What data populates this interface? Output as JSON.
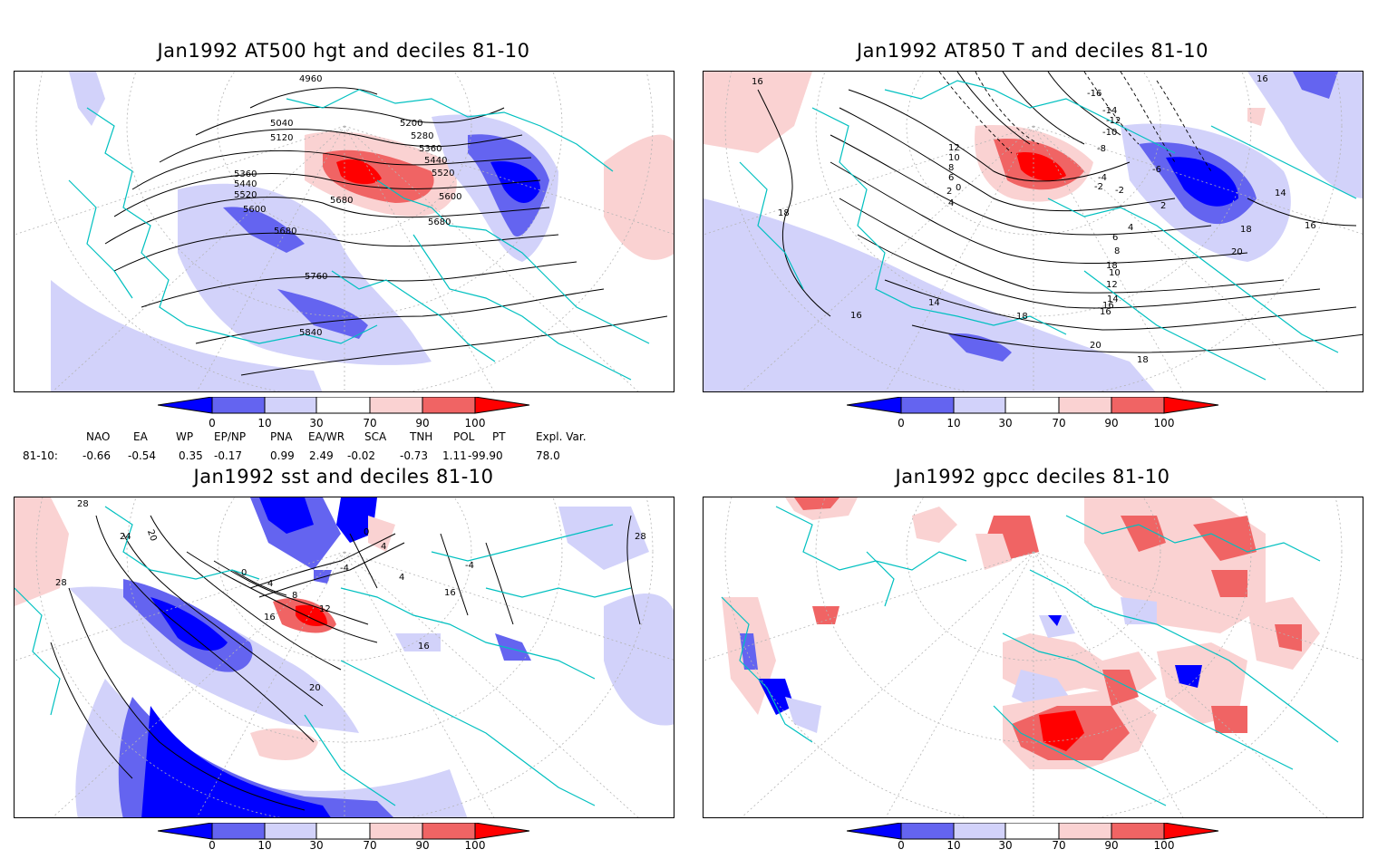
{
  "panels": [
    {
      "title": "Jan1992 AT500 hgt and deciles 81-10",
      "contour_labels": [
        "4960",
        "5040",
        "5120",
        "5200",
        "5280",
        "5360",
        "5440",
        "5520",
        "5600",
        "5680",
        "5760",
        "5840",
        "5360",
        "5440",
        "5520",
        "5600",
        "5680",
        "5680",
        "5600"
      ]
    },
    {
      "title": "Jan1992 AT850 T and deciles 81-10",
      "contour_labels": [
        "16",
        "18",
        "16",
        "14",
        "12",
        "10",
        "8",
        "6",
        "4",
        "2",
        "0",
        "-2",
        "-4",
        "-6",
        "-8",
        "-10",
        "-12",
        "-14",
        "-16",
        "14",
        "16",
        "18",
        "20",
        "18",
        "16",
        "14",
        "12",
        "10",
        "8",
        "6",
        "4",
        "2",
        "-2",
        "16",
        "14",
        "18",
        "16",
        "20",
        "18"
      ]
    },
    {
      "title": "Jan1992 sst and deciles 81-10",
      "contour_labels": [
        "28",
        "24",
        "20",
        "28",
        "0",
        "4",
        "8",
        "12",
        "16",
        "20",
        "16",
        "12",
        "8",
        "4",
        "0",
        "-4",
        "28",
        "4",
        "-4",
        "16"
      ]
    },
    {
      "title": "Jan1992 gpcc deciles 81-10",
      "contour_labels": []
    }
  ],
  "colorbar": {
    "ticks": [
      "0",
      "10",
      "30",
      "70",
      "90",
      "100"
    ],
    "colors": [
      "#0000ff",
      "#6464f0",
      "#d2d2fa",
      "#ffffff",
      "#fad2d2",
      "#f06464",
      "#ff0000"
    ]
  },
  "indices": {
    "headers": [
      "NAO",
      "EA",
      "WP",
      "EP/NP",
      "PNA",
      "EA/WR",
      "SCA",
      "TNH",
      "POL",
      "PT",
      "Expl. Var."
    ],
    "row_label": "81-10:",
    "values": [
      "-0.66",
      "-0.54",
      "0.35",
      "-0.17",
      "0.99",
      "2.49",
      "-0.02",
      "-0.73",
      "1.11",
      "-99.90",
      "78.0"
    ]
  },
  "colors": {
    "coast": "#00c0c0",
    "contour": "#000000",
    "grid": "#b4b4b4"
  }
}
